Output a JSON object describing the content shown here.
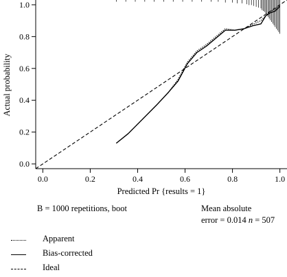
{
  "chart_data": {
    "type": "line",
    "title": "",
    "xlabel": "Predicted Pr {results = 1}",
    "ylabel": "Actual probability",
    "xlim": [
      -0.03,
      1.03
    ],
    "ylim": [
      -0.03,
      1.03
    ],
    "x_ticks": [
      "0.0",
      "0.2",
      "0.4",
      "0.6",
      "0.8",
      "1.0"
    ],
    "y_ticks": [
      "0.0",
      "0.2",
      "0.4",
      "0.6",
      "0.8",
      "1.0"
    ],
    "grid": false,
    "series": [
      {
        "name": "Apparent",
        "style": "dotted",
        "x": [
          0.31,
          0.36,
          0.42,
          0.48,
          0.53,
          0.57,
          0.61,
          0.65,
          0.69,
          0.73,
          0.77,
          0.81,
          0.85,
          0.89,
          0.92,
          0.94,
          0.96,
          0.98,
          1.0
        ],
        "y": [
          0.13,
          0.19,
          0.28,
          0.37,
          0.45,
          0.53,
          0.64,
          0.71,
          0.75,
          0.8,
          0.85,
          0.84,
          0.85,
          0.88,
          0.9,
          0.93,
          0.96,
          0.97,
          1.0
        ]
      },
      {
        "name": "Bias-corrected",
        "style": "solid",
        "x": [
          0.31,
          0.36,
          0.42,
          0.48,
          0.53,
          0.57,
          0.61,
          0.65,
          0.69,
          0.73,
          0.77,
          0.81,
          0.85,
          0.89,
          0.92,
          0.94,
          0.96,
          0.98,
          1.0
        ],
        "y": [
          0.13,
          0.19,
          0.28,
          0.37,
          0.45,
          0.52,
          0.63,
          0.7,
          0.74,
          0.79,
          0.84,
          0.84,
          0.85,
          0.87,
          0.88,
          0.93,
          0.95,
          0.96,
          0.99
        ]
      },
      {
        "name": "Ideal",
        "style": "dashed",
        "x": [
          -0.03,
          1.03
        ],
        "y": [
          -0.03,
          1.03
        ]
      }
    ],
    "rug": {
      "position": "top",
      "x": [
        0.31,
        0.35,
        0.39,
        0.43,
        0.47,
        0.51,
        0.55,
        0.59,
        0.63,
        0.67,
        0.71,
        0.74,
        0.77,
        0.8,
        0.82,
        0.84,
        0.86,
        0.87,
        0.88,
        0.89,
        0.9,
        0.91,
        0.92,
        0.925,
        0.93,
        0.935,
        0.94,
        0.945,
        0.95,
        0.955,
        0.96,
        0.965,
        0.97,
        0.975,
        0.98,
        0.985,
        0.99,
        0.995,
        1.0
      ],
      "h": [
        0.01,
        0.01,
        0.01,
        0.01,
        0.01,
        0.01,
        0.01,
        0.01,
        0.01,
        0.01,
        0.01,
        0.01,
        0.015,
        0.015,
        0.02,
        0.02,
        0.025,
        0.03,
        0.03,
        0.035,
        0.04,
        0.045,
        0.05,
        0.06,
        0.065,
        0.07,
        0.08,
        0.09,
        0.1,
        0.11,
        0.12,
        0.13,
        0.14,
        0.15,
        0.16,
        0.17,
        0.18,
        0.19,
        0.2
      ]
    },
    "legend_placement": "bottom-left"
  },
  "annotation": {
    "left": "B = 1000 repetitions, boot",
    "right_line1": "Mean absolute",
    "right_line2_prefix": "error = 0.014 ",
    "right_line2_n_symbol": "n",
    "right_line2_suffix": " = 507"
  },
  "legend": {
    "items": [
      {
        "label": "Apparent",
        "style": "dotted"
      },
      {
        "label": "Bias-corrected",
        "style": "solid"
      },
      {
        "label": "Ideal",
        "style": "dashed"
      }
    ]
  }
}
